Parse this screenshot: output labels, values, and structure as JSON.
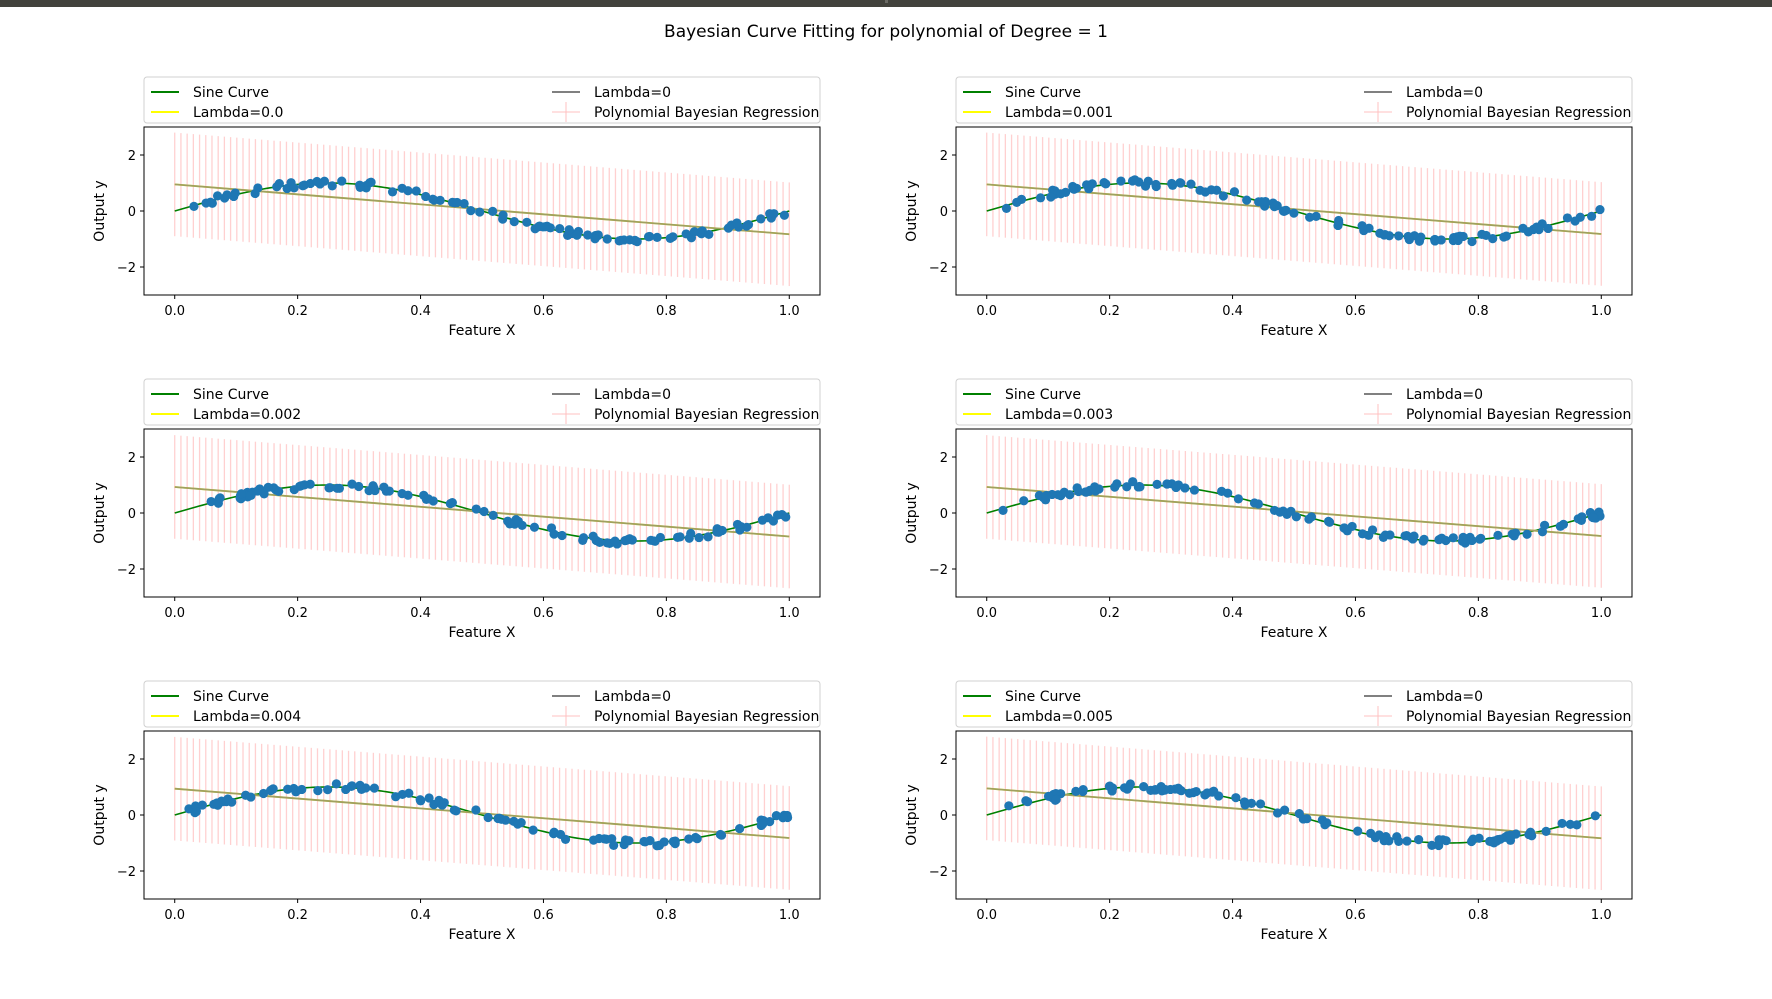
{
  "figure": {
    "suptitle": "Bayesian Curve Fitting for polynomial of Degree = 1"
  },
  "chart_data": [
    {
      "type": "line",
      "xlabel": "Feature X",
      "ylabel": "Output y",
      "xlim": [
        -0.05,
        1.05
      ],
      "ylim": [
        -3,
        3
      ],
      "xticks": [
        "0.0",
        "0.2",
        "0.4",
        "0.6",
        "0.8",
        "1.0"
      ],
      "yticks": [
        "−2",
        "0",
        "2"
      ],
      "legend": {
        "placement": "above-plot",
        "ncol": 2,
        "entries": [
          "Sine Curve",
          "Lambda=0",
          "Lambda=0.0",
          "Polynomial Bayesian Regression"
        ]
      },
      "series": [
        {
          "name": "Sine Curve",
          "color": "#008000",
          "kind": "sine",
          "function": "sin(2*pi*x)",
          "x_range": [
            0,
            1
          ]
        },
        {
          "name": "Lambda=0",
          "color": "#808080",
          "kind": "line",
          "x": [
            0,
            1
          ],
          "y": [
            0.95,
            -0.83
          ]
        },
        {
          "name": "Lambda=0.0",
          "color": "#ffff00",
          "kind": "line",
          "x": [
            0,
            1
          ],
          "y": [
            0.95,
            -0.83
          ]
        },
        {
          "name": "Polynomial Bayesian Regression",
          "color": "#ffc0c0",
          "kind": "errorbar",
          "x_range": [
            0,
            1
          ],
          "n": 100,
          "mean": [
            0.95,
            -0.83
          ],
          "halfwidth": 1.85
        },
        {
          "name": "data",
          "color": "#1f77b4",
          "kind": "scatter",
          "function": "sin(2*pi*x)+noise",
          "x_range": [
            0.02,
            1.0
          ],
          "n": 100
        }
      ]
    },
    {
      "type": "line",
      "xlabel": "Feature X",
      "ylabel": "Output y",
      "xlim": [
        -0.05,
        1.05
      ],
      "ylim": [
        -3,
        3
      ],
      "xticks": [
        "0.0",
        "0.2",
        "0.4",
        "0.6",
        "0.8",
        "1.0"
      ],
      "yticks": [
        "−2",
        "0",
        "2"
      ],
      "legend": {
        "placement": "above-plot",
        "ncol": 2,
        "entries": [
          "Sine Curve",
          "Lambda=0",
          "Lambda=0.001",
          "Polynomial Bayesian Regression"
        ]
      },
      "series": [
        {
          "name": "Sine Curve",
          "color": "#008000",
          "kind": "sine",
          "function": "sin(2*pi*x)",
          "x_range": [
            0,
            1
          ]
        },
        {
          "name": "Lambda=0",
          "color": "#808080",
          "kind": "line",
          "x": [
            0,
            1
          ],
          "y": [
            0.95,
            -0.82
          ]
        },
        {
          "name": "Lambda=0.001",
          "color": "#ffff00",
          "kind": "line",
          "x": [
            0,
            1
          ],
          "y": [
            0.95,
            -0.82
          ]
        },
        {
          "name": "Polynomial Bayesian Regression",
          "color": "#ffc0c0",
          "kind": "errorbar",
          "x_range": [
            0,
            1
          ],
          "n": 100,
          "mean": [
            0.95,
            -0.82
          ],
          "halfwidth": 1.85
        },
        {
          "name": "data",
          "color": "#1f77b4",
          "kind": "scatter",
          "function": "sin(2*pi*x)+noise",
          "x_range": [
            0.02,
            1.0
          ],
          "n": 100
        }
      ]
    },
    {
      "type": "line",
      "xlabel": "Feature X",
      "ylabel": "Output y",
      "xlim": [
        -0.05,
        1.05
      ],
      "ylim": [
        -3,
        3
      ],
      "xticks": [
        "0.0",
        "0.2",
        "0.4",
        "0.6",
        "0.8",
        "1.0"
      ],
      "yticks": [
        "−2",
        "0",
        "2"
      ],
      "legend": {
        "placement": "above-plot",
        "ncol": 2,
        "entries": [
          "Sine Curve",
          "Lambda=0",
          "Lambda=0.002",
          "Polynomial Bayesian Regression"
        ]
      },
      "series": [
        {
          "name": "Sine Curve",
          "color": "#008000",
          "kind": "sine",
          "function": "sin(2*pi*x)",
          "x_range": [
            0,
            1
          ]
        },
        {
          "name": "Lambda=0",
          "color": "#808080",
          "kind": "line",
          "x": [
            0,
            1
          ],
          "y": [
            0.93,
            -0.84
          ]
        },
        {
          "name": "Lambda=0.002",
          "color": "#ffff00",
          "kind": "line",
          "x": [
            0,
            1
          ],
          "y": [
            0.93,
            -0.84
          ]
        },
        {
          "name": "Polynomial Bayesian Regression",
          "color": "#ffc0c0",
          "kind": "errorbar",
          "x_range": [
            0,
            1
          ],
          "n": 100,
          "mean": [
            0.93,
            -0.84
          ],
          "halfwidth": 1.85
        },
        {
          "name": "data",
          "color": "#1f77b4",
          "kind": "scatter",
          "function": "sin(2*pi*x)+noise",
          "x_range": [
            0.02,
            1.0
          ],
          "n": 100
        }
      ]
    },
    {
      "type": "line",
      "xlabel": "Feature X",
      "ylabel": "Output y",
      "xlim": [
        -0.05,
        1.05
      ],
      "ylim": [
        -3,
        3
      ],
      "xticks": [
        "0.0",
        "0.2",
        "0.4",
        "0.6",
        "0.8",
        "1.0"
      ],
      "yticks": [
        "−2",
        "0",
        "2"
      ],
      "legend": {
        "placement": "above-plot",
        "ncol": 2,
        "entries": [
          "Sine Curve",
          "Lambda=0",
          "Lambda=0.003",
          "Polynomial Bayesian Regression"
        ]
      },
      "series": [
        {
          "name": "Sine Curve",
          "color": "#008000",
          "kind": "sine",
          "function": "sin(2*pi*x)",
          "x_range": [
            0,
            1
          ]
        },
        {
          "name": "Lambda=0",
          "color": "#808080",
          "kind": "line",
          "x": [
            0,
            1
          ],
          "y": [
            0.93,
            -0.82
          ]
        },
        {
          "name": "Lambda=0.003",
          "color": "#ffff00",
          "kind": "line",
          "x": [
            0,
            1
          ],
          "y": [
            0.93,
            -0.82
          ]
        },
        {
          "name": "Polynomial Bayesian Regression",
          "color": "#ffc0c0",
          "kind": "errorbar",
          "x_range": [
            0,
            1
          ],
          "n": 100,
          "mean": [
            0.93,
            -0.82
          ],
          "halfwidth": 1.85
        },
        {
          "name": "data",
          "color": "#1f77b4",
          "kind": "scatter",
          "function": "sin(2*pi*x)+noise",
          "x_range": [
            0.02,
            1.0
          ],
          "n": 100
        }
      ]
    },
    {
      "type": "line",
      "xlabel": "Feature X",
      "ylabel": "Output y",
      "xlim": [
        -0.05,
        1.05
      ],
      "ylim": [
        -3,
        3
      ],
      "xticks": [
        "0.0",
        "0.2",
        "0.4",
        "0.6",
        "0.8",
        "1.0"
      ],
      "yticks": [
        "−2",
        "0",
        "2"
      ],
      "legend": {
        "placement": "above-plot",
        "ncol": 2,
        "entries": [
          "Sine Curve",
          "Lambda=0",
          "Lambda=0.004",
          "Polynomial Bayesian Regression"
        ]
      },
      "series": [
        {
          "name": "Sine Curve",
          "color": "#008000",
          "kind": "sine",
          "function": "sin(2*pi*x)",
          "x_range": [
            0,
            1
          ]
        },
        {
          "name": "Lambda=0",
          "color": "#808080",
          "kind": "line",
          "x": [
            0,
            1
          ],
          "y": [
            0.94,
            -0.82
          ]
        },
        {
          "name": "Lambda=0.004",
          "color": "#ffff00",
          "kind": "line",
          "x": [
            0,
            1
          ],
          "y": [
            0.94,
            -0.82
          ]
        },
        {
          "name": "Polynomial Bayesian Regression",
          "color": "#ffc0c0",
          "kind": "errorbar",
          "x_range": [
            0,
            1
          ],
          "n": 100,
          "mean": [
            0.94,
            -0.82
          ],
          "halfwidth": 1.85
        },
        {
          "name": "data",
          "color": "#1f77b4",
          "kind": "scatter",
          "function": "sin(2*pi*x)+noise",
          "x_range": [
            0.02,
            1.0
          ],
          "n": 100
        }
      ]
    },
    {
      "type": "line",
      "xlabel": "Feature X",
      "ylabel": "Output y",
      "xlim": [
        -0.05,
        1.05
      ],
      "ylim": [
        -3,
        3
      ],
      "xticks": [
        "0.0",
        "0.2",
        "0.4",
        "0.6",
        "0.8",
        "1.0"
      ],
      "yticks": [
        "−2",
        "0",
        "2"
      ],
      "legend": {
        "placement": "above-plot",
        "ncol": 2,
        "entries": [
          "Sine Curve",
          "Lambda=0",
          "Lambda=0.005",
          "Polynomial Bayesian Regression"
        ]
      },
      "series": [
        {
          "name": "Sine Curve",
          "color": "#008000",
          "kind": "sine",
          "function": "sin(2*pi*x)",
          "x_range": [
            0,
            1
          ]
        },
        {
          "name": "Lambda=0",
          "color": "#808080",
          "kind": "line",
          "x": [
            0,
            1
          ],
          "y": [
            0.95,
            -0.83
          ]
        },
        {
          "name": "Lambda=0.005",
          "color": "#ffff00",
          "kind": "line",
          "x": [
            0,
            1
          ],
          "y": [
            0.95,
            -0.83
          ]
        },
        {
          "name": "Polynomial Bayesian Regression",
          "color": "#ffc0c0",
          "kind": "errorbar",
          "x_range": [
            0,
            1
          ],
          "n": 100,
          "mean": [
            0.95,
            -0.83
          ],
          "halfwidth": 1.85
        },
        {
          "name": "data",
          "color": "#1f77b4",
          "kind": "scatter",
          "function": "sin(2*pi*x)+noise",
          "x_range": [
            0.02,
            1.0
          ],
          "n": 100
        }
      ]
    }
  ]
}
